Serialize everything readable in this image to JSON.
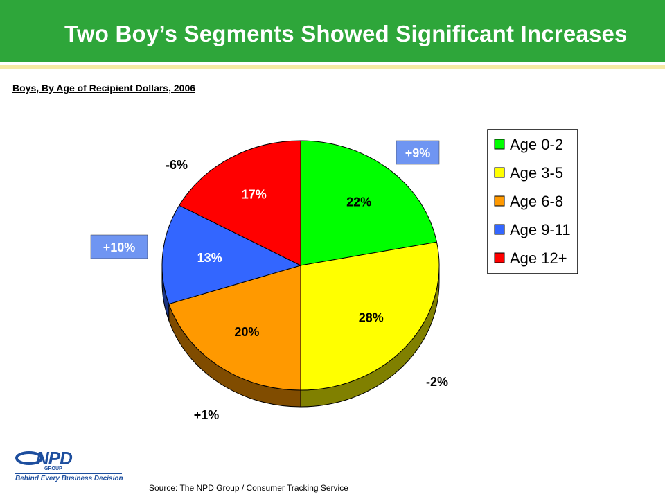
{
  "header": {
    "title": "Two Boy’s Segments Showed Significant Increases"
  },
  "subtitle": "Boys, By Age of Recipient Dollars, 2006",
  "source": "Source:  The NPD Group / Consumer Tracking Service",
  "logo": {
    "brand": "NPD",
    "group": "GROUP",
    "tagline": "Behind Every Business Decision"
  },
  "colors": {
    "header_green": "#2ea63a",
    "label_box": "#6f95f2"
  },
  "chart_data": {
    "type": "pie",
    "title": "",
    "slices": [
      {
        "label": "Age 0-2",
        "value": 22,
        "value_label": "22%",
        "change": "+9%",
        "change_boxed": true,
        "color": "#00ff00",
        "side_color": "#008000"
      },
      {
        "label": "Age 3-5",
        "value": 28,
        "value_label": "28%",
        "change": "-2%",
        "change_boxed": false,
        "color": "#ffff00",
        "side_color": "#808000"
      },
      {
        "label": "Age 6-8",
        "value": 20,
        "value_label": "20%",
        "change": "+1%",
        "change_boxed": false,
        "color": "#ff9900",
        "side_color": "#804c00"
      },
      {
        "label": "Age 9-11",
        "value": 13,
        "value_label": "13%",
        "change": "+10%",
        "change_boxed": true,
        "color": "#3366ff",
        "side_color": "#1a3380"
      },
      {
        "label": "Age 12+",
        "value": 17,
        "value_label": "17%",
        "change": "-6%",
        "change_boxed": false,
        "color": "#ff0000",
        "side_color": "#800000"
      }
    ],
    "legend_position": "right"
  }
}
